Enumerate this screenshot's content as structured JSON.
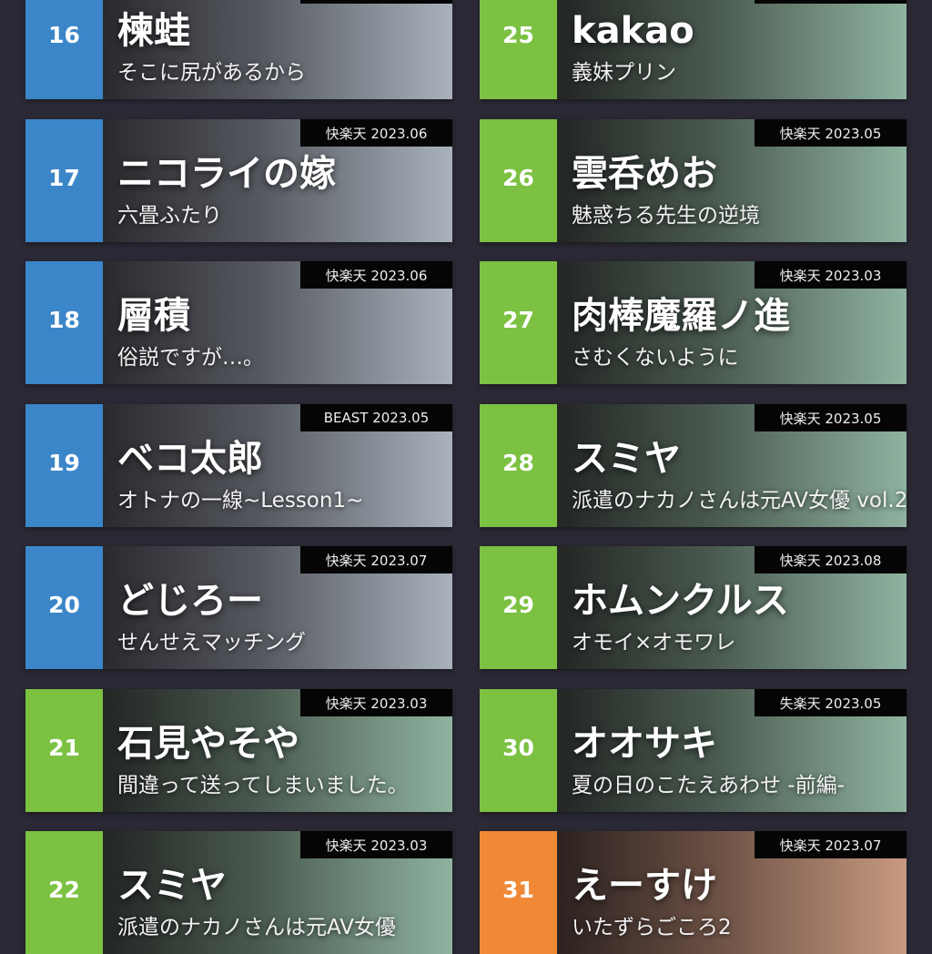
{
  "colors": {
    "blue": "#3b86c9",
    "green": "#7cc142",
    "orange": "#f08936",
    "background": "#2b2935"
  },
  "left": [
    {
      "rank": "16",
      "title": "楝蛙",
      "subtitle": "そこに尻があるから",
      "tag": "",
      "color": "blue"
    },
    {
      "rank": "17",
      "title": "ニコライの嫁",
      "subtitle": "六畳ふたり",
      "tag": "快楽天 2023.06",
      "color": "blue"
    },
    {
      "rank": "18",
      "title": "層積",
      "subtitle": "俗説ですが…。",
      "tag": "快楽天 2023.06",
      "color": "blue"
    },
    {
      "rank": "19",
      "title": "ベコ太郎",
      "subtitle": "オトナの一線~Lesson1~",
      "tag": "BEAST 2023.05",
      "color": "blue"
    },
    {
      "rank": "20",
      "title": "どじろー",
      "subtitle": "せんせえマッチング",
      "tag": "快楽天 2023.07",
      "color": "blue"
    },
    {
      "rank": "21",
      "title": "石見やそや",
      "subtitle": "間違って送ってしまいました。",
      "tag": "快楽天 2023.03",
      "color": "green"
    },
    {
      "rank": "22",
      "title": "スミヤ",
      "subtitle": "派遣のナカノさんは元AV女優",
      "tag": "快楽天 2023.03",
      "color": "green"
    }
  ],
  "right": [
    {
      "rank": "25",
      "title": "kakao",
      "subtitle": "義妹プリン",
      "tag": "",
      "color": "green"
    },
    {
      "rank": "26",
      "title": "雲呑めお",
      "subtitle": "魅惑ちる先生の逆境",
      "tag": "快楽天 2023.05",
      "color": "green"
    },
    {
      "rank": "27",
      "title": "肉棒魔羅ノ進",
      "subtitle": "さむくないように",
      "tag": "快楽天 2023.03",
      "color": "green"
    },
    {
      "rank": "28",
      "title": "スミヤ",
      "subtitle": "派遣のナカノさんは元AV女優 vol.2",
      "tag": "快楽天 2023.05",
      "color": "green"
    },
    {
      "rank": "29",
      "title": "ホムンクルス",
      "subtitle": "オモイ×オモワレ",
      "tag": "快楽天 2023.08",
      "color": "green"
    },
    {
      "rank": "30",
      "title": "オオサキ",
      "subtitle": "夏の日のこたえあわせ -前編-",
      "tag": "失楽天 2023.05",
      "color": "green"
    },
    {
      "rank": "31",
      "title": "えーすけ",
      "subtitle": "いたずらごころ2",
      "tag": "快楽天 2023.07",
      "color": "orange"
    }
  ]
}
